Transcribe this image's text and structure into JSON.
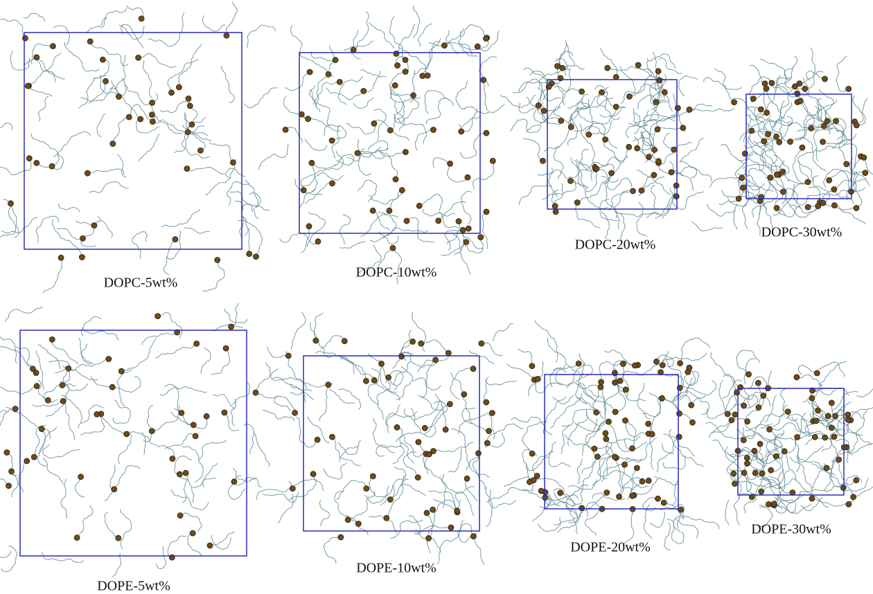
{
  "panels": [
    {
      "label": "DOPC-5wt%"
    },
    {
      "label": "DOPC-10wt%"
    },
    {
      "label": "DOPC-20wt%"
    },
    {
      "label": "DOPC-30wt%"
    },
    {
      "label": "DOPE-5wt%"
    },
    {
      "label": "DOPE-10wt%"
    },
    {
      "label": "DOPE-20wt%"
    },
    {
      "label": "DOPE-30wt%"
    }
  ]
}
